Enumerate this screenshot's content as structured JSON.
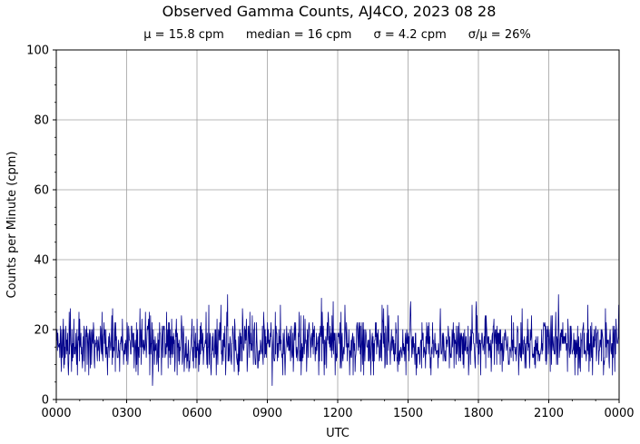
{
  "chart_data": {
    "type": "line",
    "title": "Observed Gamma Counts, AJ4CO, 2023 08 28",
    "subtitle": {
      "mean": "μ = 15.8 cpm",
      "median": "median = 16 cpm",
      "sigma": "σ = 4.2 cpm",
      "ratio": "σ/μ = 26%"
    },
    "xlabel": "UTC",
    "ylabel": "Counts per Minute (cpm)",
    "xlim": [
      0,
      24
    ],
    "ylim": [
      0,
      100
    ],
    "x_ticks": [
      {
        "value": 0,
        "label": "0000"
      },
      {
        "value": 3,
        "label": "0300"
      },
      {
        "value": 6,
        "label": "0600"
      },
      {
        "value": 9,
        "label": "0900"
      },
      {
        "value": 12,
        "label": "1200"
      },
      {
        "value": 15,
        "label": "1500"
      },
      {
        "value": 18,
        "label": "1800"
      },
      {
        "value": 21,
        "label": "2100"
      },
      {
        "value": 24,
        "label": "0000"
      }
    ],
    "y_ticks": [
      0,
      20,
      40,
      60,
      80,
      100
    ],
    "grid": true,
    "series": [
      {
        "color": "#00008b",
        "sample_interval_minutes": 1,
        "count": 1440,
        "mean": 15.8,
        "std": 4.2,
        "min": 4,
        "max": 30,
        "peaks": [
          {
            "x": 7.3,
            "y": 30
          },
          {
            "x": 11.3,
            "y": 29
          },
          {
            "x": 11.8,
            "y": 28
          },
          {
            "x": 17.9,
            "y": 28
          },
          {
            "x": 21.4,
            "y": 30
          },
          {
            "x": 15.1,
            "y": 28
          },
          {
            "x": 4.1,
            "y": 4
          },
          {
            "x": 9.2,
            "y": 4
          }
        ]
      }
    ]
  }
}
